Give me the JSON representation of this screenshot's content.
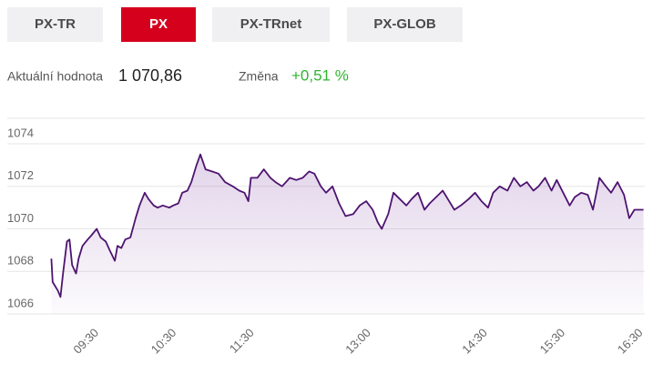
{
  "tabs": [
    "PX-TR",
    "PX",
    "PX-TRnet",
    "PX-GLOB"
  ],
  "active_tab": 1,
  "summary": {
    "value_label": "Aktuální hodnota",
    "value": "1 070,86",
    "change_label": "Změna",
    "change": "+0,51 %"
  },
  "chart_data": {
    "type": "line",
    "color": "#4e1470",
    "grid": true,
    "x": [
      539,
      540,
      544,
      546,
      548,
      551,
      553,
      555,
      558,
      560,
      563,
      567,
      570,
      574,
      577,
      581,
      584,
      588,
      590,
      593,
      596,
      600,
      604,
      607,
      611,
      614,
      618,
      621,
      625,
      630,
      633,
      637,
      640,
      644,
      647,
      651,
      654,
      658,
      663,
      668,
      673,
      679,
      684,
      688,
      691,
      693,
      698,
      703,
      708,
      712,
      717,
      723,
      728,
      733,
      738,
      742,
      747,
      751,
      756,
      761,
      766,
      772,
      777,
      782,
      787,
      791,
      794,
      799,
      803,
      808,
      813,
      817,
      822,
      827,
      831,
      836,
      841,
      845,
      850,
      855,
      861,
      866,
      871,
      876,
      880,
      885,
      891,
      896,
      901,
      906,
      911,
      915,
      920,
      925,
      929,
      934,
      939,
      943,
      948,
      953,
      957,
      962,
      967,
      971,
      976,
      981,
      985,
      989,
      992,
      996
    ],
    "values": [
      1068.6,
      1067.5,
      1067.1,
      1066.8,
      1067.9,
      1069.4,
      1069.5,
      1068.3,
      1067.9,
      1068.6,
      1069.2,
      1069.5,
      1069.7,
      1070.0,
      1069.6,
      1069.4,
      1069.0,
      1068.5,
      1069.2,
      1069.1,
      1069.5,
      1069.6,
      1070.5,
      1071.1,
      1071.7,
      1071.4,
      1071.1,
      1071.0,
      1071.1,
      1071.0,
      1071.1,
      1071.2,
      1071.7,
      1071.8,
      1072.2,
      1073.0,
      1073.5,
      1072.8,
      1072.7,
      1072.6,
      1072.2,
      1072.0,
      1071.8,
      1071.7,
      1071.3,
      1072.4,
      1072.4,
      1072.8,
      1072.4,
      1072.2,
      1072.0,
      1072.4,
      1072.3,
      1072.4,
      1072.7,
      1072.6,
      1072.0,
      1071.7,
      1072.0,
      1071.2,
      1070.6,
      1070.7,
      1071.1,
      1071.3,
      1070.9,
      1070.3,
      1070.0,
      1070.7,
      1071.7,
      1071.4,
      1071.1,
      1071.4,
      1071.7,
      1070.9,
      1071.2,
      1071.5,
      1071.8,
      1071.4,
      1070.9,
      1071.1,
      1071.4,
      1071.7,
      1071.3,
      1071.0,
      1071.7,
      1072.0,
      1071.8,
      1072.4,
      1072.0,
      1072.2,
      1071.8,
      1072.0,
      1072.4,
      1071.8,
      1072.3,
      1071.7,
      1071.1,
      1071.5,
      1071.7,
      1071.6,
      1070.9,
      1072.4,
      1072.0,
      1071.7,
      1072.2,
      1071.6,
      1070.5,
      1070.9,
      1070.9,
      1070.9
    ],
    "xlim": [
      538,
      997
    ],
    "xticks": [
      {
        "value": 570,
        "label": "09:30"
      },
      {
        "value": 630,
        "label": "10:30"
      },
      {
        "value": 690,
        "label": "11:30"
      },
      {
        "value": 780,
        "label": "13:00"
      },
      {
        "value": 870,
        "label": "14:30"
      },
      {
        "value": 930,
        "label": "15:30"
      },
      {
        "value": 990,
        "label": "16:30"
      }
    ],
    "ylim": [
      1066,
      1075.2
    ],
    "yticks": [
      1066,
      1068,
      1070,
      1072,
      1074
    ]
  }
}
